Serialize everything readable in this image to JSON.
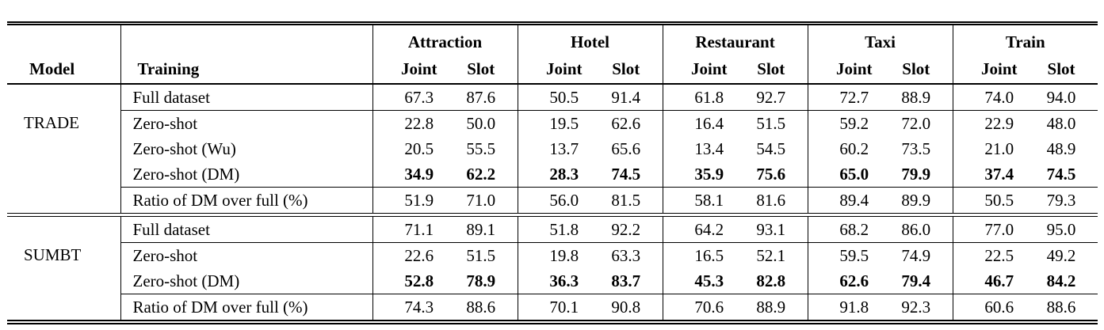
{
  "page": {
    "background": "#ffffff",
    "text_color": "#000000",
    "rule_color": "#000000"
  },
  "table": {
    "col_headers": {
      "model": "Model",
      "training": "Training",
      "joint": "Joint",
      "slot": "Slot"
    },
    "domains": [
      "Attraction",
      "Hotel",
      "Restaurant",
      "Taxi",
      "Train"
    ],
    "blocks": [
      {
        "model": "TRADE",
        "rows": [
          {
            "training": "Full dataset",
            "bold": false,
            "values": [
              "67.3",
              "87.6",
              "50.5",
              "91.4",
              "61.8",
              "92.7",
              "72.7",
              "88.9",
              "74.0",
              "94.0"
            ]
          },
          {
            "training": "Zero-shot",
            "bold": false,
            "values": [
              "22.8",
              "50.0",
              "19.5",
              "62.6",
              "16.4",
              "51.5",
              "59.2",
              "72.0",
              "22.9",
              "48.0"
            ]
          },
          {
            "training": "Zero-shot (Wu)",
            "bold": false,
            "values": [
              "20.5",
              "55.5",
              "13.7",
              "65.6",
              "13.4",
              "54.5",
              "60.2",
              "73.5",
              "21.0",
              "48.9"
            ]
          },
          {
            "training": "Zero-shot (DM)",
            "bold": true,
            "values": [
              "34.9",
              "62.2",
              "28.3",
              "74.5",
              "35.9",
              "75.6",
              "65.0",
              "79.9",
              "37.4",
              "74.5"
            ]
          },
          {
            "training": "Ratio of DM over full (%)",
            "bold": false,
            "values": [
              "51.9",
              "71.0",
              "56.0",
              "81.5",
              "58.1",
              "81.6",
              "89.4",
              "89.9",
              "50.5",
              "79.3"
            ]
          }
        ]
      },
      {
        "model": "SUMBT",
        "rows": [
          {
            "training": "Full dataset",
            "bold": false,
            "values": [
              "71.1",
              "89.1",
              "51.8",
              "92.2",
              "64.2",
              "93.1",
              "68.2",
              "86.0",
              "77.0",
              "95.0"
            ]
          },
          {
            "training": "Zero-shot",
            "bold": false,
            "values": [
              "22.6",
              "51.5",
              "19.8",
              "63.3",
              "16.5",
              "52.1",
              "59.5",
              "74.9",
              "22.5",
              "49.2"
            ]
          },
          {
            "training": "Zero-shot (DM)",
            "bold": true,
            "values": [
              "52.8",
              "78.9",
              "36.3",
              "83.7",
              "45.3",
              "82.8",
              "62.6",
              "79.4",
              "46.7",
              "84.2"
            ]
          },
          {
            "training": "Ratio of DM over full (%)",
            "bold": false,
            "values": [
              "74.3",
              "88.6",
              "70.1",
              "90.8",
              "70.6",
              "88.9",
              "91.8",
              "92.3",
              "60.6",
              "88.6"
            ]
          }
        ]
      }
    ]
  }
}
